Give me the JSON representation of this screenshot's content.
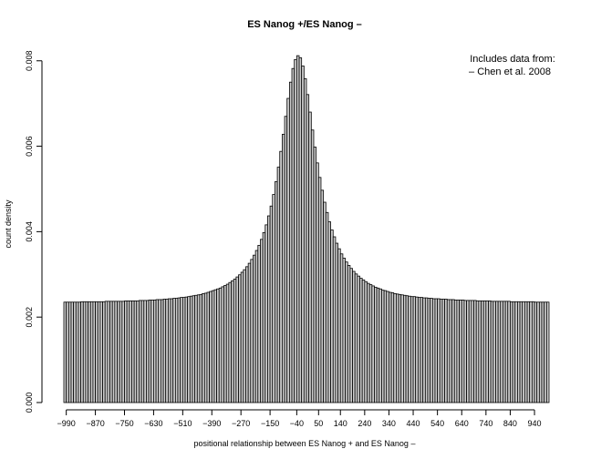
{
  "chart_data": {
    "type": "bar",
    "title": "ES Nanog +/ES Nanog –",
    "xlabel": "positional relationship between ES Nanog + and ES Nanog –",
    "ylabel": "count density",
    "annotation_lines": [
      "Includes data from:",
      "– Chen et al. 2008"
    ],
    "xlim": [
      -1000,
      1000
    ],
    "ylim": [
      0,
      0.0084
    ],
    "bin_width": 10,
    "x_tick_values": [
      -990,
      -870,
      -750,
      -630,
      -510,
      -390,
      -270,
      -150,
      -40,
      50,
      140,
      240,
      340,
      440,
      540,
      640,
      740,
      840,
      940
    ],
    "x_tick_labels": [
      "−990",
      "−870",
      "−750",
      "−630",
      "−510",
      "−390",
      "−270",
      "−150",
      "−40",
      "50",
      "140",
      "240",
      "340",
      "440",
      "540",
      "640",
      "740",
      "840",
      "940"
    ],
    "y_tick_values": [
      0,
      0.002,
      0.004,
      0.006,
      0.008
    ],
    "y_tick_labels": [
      "0.000",
      "0.002",
      "0.004",
      "0.006",
      "0.008"
    ],
    "bar_fill": "#cccccc",
    "bar_stroke": "#000000",
    "bins": [
      {
        "x": -1000,
        "y": 0.00235
      },
      {
        "x": -990,
        "y": 0.00235
      },
      {
        "x": -980,
        "y": 0.00235
      },
      {
        "x": -970,
        "y": 0.00235
      },
      {
        "x": -960,
        "y": 0.00235
      },
      {
        "x": -950,
        "y": 0.00235
      },
      {
        "x": -940,
        "y": 0.00235
      },
      {
        "x": -930,
        "y": 0.00236
      },
      {
        "x": -920,
        "y": 0.00236
      },
      {
        "x": -910,
        "y": 0.00236
      },
      {
        "x": -900,
        "y": 0.00236
      },
      {
        "x": -890,
        "y": 0.00236
      },
      {
        "x": -880,
        "y": 0.00236
      },
      {
        "x": -870,
        "y": 0.00236
      },
      {
        "x": -860,
        "y": 0.00236
      },
      {
        "x": -850,
        "y": 0.00236
      },
      {
        "x": -840,
        "y": 0.00236
      },
      {
        "x": -830,
        "y": 0.00237
      },
      {
        "x": -820,
        "y": 0.00237
      },
      {
        "x": -810,
        "y": 0.00237
      },
      {
        "x": -800,
        "y": 0.00237
      },
      {
        "x": -790,
        "y": 0.00237
      },
      {
        "x": -780,
        "y": 0.00237
      },
      {
        "x": -770,
        "y": 0.00237
      },
      {
        "x": -760,
        "y": 0.00237
      },
      {
        "x": -750,
        "y": 0.00238
      },
      {
        "x": -740,
        "y": 0.00238
      },
      {
        "x": -730,
        "y": 0.00238
      },
      {
        "x": -720,
        "y": 0.00238
      },
      {
        "x": -710,
        "y": 0.00238
      },
      {
        "x": -700,
        "y": 0.00238
      },
      {
        "x": -690,
        "y": 0.00239
      },
      {
        "x": -680,
        "y": 0.00239
      },
      {
        "x": -670,
        "y": 0.00239
      },
      {
        "x": -660,
        "y": 0.00239
      },
      {
        "x": -650,
        "y": 0.0024
      },
      {
        "x": -640,
        "y": 0.0024
      },
      {
        "x": -630,
        "y": 0.0024
      },
      {
        "x": -620,
        "y": 0.00241
      },
      {
        "x": -610,
        "y": 0.00241
      },
      {
        "x": -600,
        "y": 0.00241
      },
      {
        "x": -590,
        "y": 0.00242
      },
      {
        "x": -580,
        "y": 0.00242
      },
      {
        "x": -570,
        "y": 0.00243
      },
      {
        "x": -560,
        "y": 0.00243
      },
      {
        "x": -550,
        "y": 0.00244
      },
      {
        "x": -540,
        "y": 0.00244
      },
      {
        "x": -530,
        "y": 0.00245
      },
      {
        "x": -520,
        "y": 0.00246
      },
      {
        "x": -510,
        "y": 0.00246
      },
      {
        "x": -500,
        "y": 0.00247
      },
      {
        "x": -490,
        "y": 0.00248
      },
      {
        "x": -480,
        "y": 0.00249
      },
      {
        "x": -470,
        "y": 0.0025
      },
      {
        "x": -460,
        "y": 0.00251
      },
      {
        "x": -450,
        "y": 0.00252
      },
      {
        "x": -440,
        "y": 0.00253
      },
      {
        "x": -430,
        "y": 0.00255
      },
      {
        "x": -420,
        "y": 0.00256
      },
      {
        "x": -410,
        "y": 0.00258
      },
      {
        "x": -400,
        "y": 0.0026
      },
      {
        "x": -390,
        "y": 0.00262
      },
      {
        "x": -380,
        "y": 0.00264
      },
      {
        "x": -370,
        "y": 0.00266
      },
      {
        "x": -360,
        "y": 0.00268
      },
      {
        "x": -350,
        "y": 0.00271
      },
      {
        "x": -340,
        "y": 0.00274
      },
      {
        "x": -330,
        "y": 0.00277
      },
      {
        "x": -320,
        "y": 0.00281
      },
      {
        "x": -310,
        "y": 0.00285
      },
      {
        "x": -300,
        "y": 0.00289
      },
      {
        "x": -290,
        "y": 0.00294
      },
      {
        "x": -280,
        "y": 0.00299
      },
      {
        "x": -270,
        "y": 0.00305
      },
      {
        "x": -260,
        "y": 0.00311
      },
      {
        "x": -250,
        "y": 0.00318
      },
      {
        "x": -240,
        "y": 0.00326
      },
      {
        "x": -230,
        "y": 0.00335
      },
      {
        "x": -220,
        "y": 0.00345
      },
      {
        "x": -210,
        "y": 0.00356
      },
      {
        "x": -200,
        "y": 0.00368
      },
      {
        "x": -190,
        "y": 0.00382
      },
      {
        "x": -180,
        "y": 0.00398
      },
      {
        "x": -170,
        "y": 0.00416
      },
      {
        "x": -160,
        "y": 0.00437
      },
      {
        "x": -150,
        "y": 0.0046
      },
      {
        "x": -140,
        "y": 0.00487
      },
      {
        "x": -130,
        "y": 0.00517
      },
      {
        "x": -120,
        "y": 0.00551
      },
      {
        "x": -110,
        "y": 0.00588
      },
      {
        "x": -100,
        "y": 0.00628
      },
      {
        "x": -90,
        "y": 0.0067
      },
      {
        "x": -80,
        "y": 0.00712
      },
      {
        "x": -70,
        "y": 0.0075
      },
      {
        "x": -60,
        "y": 0.00782
      },
      {
        "x": -50,
        "y": 0.00803
      },
      {
        "x": -40,
        "y": 0.00812
      },
      {
        "x": -30,
        "y": 0.00807
      },
      {
        "x": -20,
        "y": 0.00788
      },
      {
        "x": -10,
        "y": 0.00758
      },
      {
        "x": 0,
        "y": 0.00721
      },
      {
        "x": 10,
        "y": 0.0068
      },
      {
        "x": 20,
        "y": 0.00638
      },
      {
        "x": 30,
        "y": 0.00598
      },
      {
        "x": 40,
        "y": 0.00561
      },
      {
        "x": 50,
        "y": 0.00527
      },
      {
        "x": 60,
        "y": 0.00497
      },
      {
        "x": 70,
        "y": 0.00469
      },
      {
        "x": 80,
        "y": 0.00445
      },
      {
        "x": 90,
        "y": 0.00423
      },
      {
        "x": 100,
        "y": 0.00404
      },
      {
        "x": 110,
        "y": 0.00388
      },
      {
        "x": 120,
        "y": 0.00373
      },
      {
        "x": 130,
        "y": 0.0036
      },
      {
        "x": 140,
        "y": 0.00348
      },
      {
        "x": 150,
        "y": 0.00338
      },
      {
        "x": 160,
        "y": 0.00329
      },
      {
        "x": 170,
        "y": 0.00321
      },
      {
        "x": 180,
        "y": 0.00314
      },
      {
        "x": 190,
        "y": 0.00307
      },
      {
        "x": 200,
        "y": 0.00301
      },
      {
        "x": 210,
        "y": 0.00296
      },
      {
        "x": 220,
        "y": 0.00291
      },
      {
        "x": 230,
        "y": 0.00287
      },
      {
        "x": 240,
        "y": 0.00283
      },
      {
        "x": 250,
        "y": 0.00279
      },
      {
        "x": 260,
        "y": 0.00276
      },
      {
        "x": 270,
        "y": 0.00273
      },
      {
        "x": 280,
        "y": 0.0027
      },
      {
        "x": 290,
        "y": 0.00268
      },
      {
        "x": 300,
        "y": 0.00266
      },
      {
        "x": 310,
        "y": 0.00263
      },
      {
        "x": 320,
        "y": 0.00262
      },
      {
        "x": 330,
        "y": 0.0026
      },
      {
        "x": 340,
        "y": 0.00258
      },
      {
        "x": 350,
        "y": 0.00257
      },
      {
        "x": 360,
        "y": 0.00255
      },
      {
        "x": 370,
        "y": 0.00254
      },
      {
        "x": 380,
        "y": 0.00253
      },
      {
        "x": 390,
        "y": 0.00252
      },
      {
        "x": 400,
        "y": 0.00251
      },
      {
        "x": 410,
        "y": 0.0025
      },
      {
        "x": 420,
        "y": 0.00249
      },
      {
        "x": 430,
        "y": 0.00248
      },
      {
        "x": 440,
        "y": 0.00248
      },
      {
        "x": 450,
        "y": 0.00247
      },
      {
        "x": 460,
        "y": 0.00246
      },
      {
        "x": 470,
        "y": 0.00246
      },
      {
        "x": 480,
        "y": 0.00245
      },
      {
        "x": 490,
        "y": 0.00245
      },
      {
        "x": 500,
        "y": 0.00244
      },
      {
        "x": 510,
        "y": 0.00244
      },
      {
        "x": 520,
        "y": 0.00243
      },
      {
        "x": 530,
        "y": 0.00243
      },
      {
        "x": 540,
        "y": 0.00243
      },
      {
        "x": 550,
        "y": 0.00242
      },
      {
        "x": 560,
        "y": 0.00242
      },
      {
        "x": 570,
        "y": 0.00242
      },
      {
        "x": 580,
        "y": 0.00241
      },
      {
        "x": 590,
        "y": 0.00241
      },
      {
        "x": 600,
        "y": 0.00241
      },
      {
        "x": 610,
        "y": 0.0024
      },
      {
        "x": 620,
        "y": 0.0024
      },
      {
        "x": 630,
        "y": 0.0024
      },
      {
        "x": 640,
        "y": 0.0024
      },
      {
        "x": 650,
        "y": 0.00239
      },
      {
        "x": 660,
        "y": 0.00239
      },
      {
        "x": 670,
        "y": 0.00239
      },
      {
        "x": 680,
        "y": 0.00239
      },
      {
        "x": 690,
        "y": 0.00239
      },
      {
        "x": 700,
        "y": 0.00238
      },
      {
        "x": 710,
        "y": 0.00238
      },
      {
        "x": 720,
        "y": 0.00238
      },
      {
        "x": 730,
        "y": 0.00238
      },
      {
        "x": 740,
        "y": 0.00238
      },
      {
        "x": 750,
        "y": 0.00238
      },
      {
        "x": 760,
        "y": 0.00237
      },
      {
        "x": 770,
        "y": 0.00237
      },
      {
        "x": 780,
        "y": 0.00237
      },
      {
        "x": 790,
        "y": 0.00237
      },
      {
        "x": 800,
        "y": 0.00237
      },
      {
        "x": 810,
        "y": 0.00237
      },
      {
        "x": 820,
        "y": 0.00237
      },
      {
        "x": 830,
        "y": 0.00237
      },
      {
        "x": 840,
        "y": 0.00236
      },
      {
        "x": 850,
        "y": 0.00236
      },
      {
        "x": 860,
        "y": 0.00236
      },
      {
        "x": 870,
        "y": 0.00236
      },
      {
        "x": 880,
        "y": 0.00236
      },
      {
        "x": 890,
        "y": 0.00236
      },
      {
        "x": 900,
        "y": 0.00236
      },
      {
        "x": 910,
        "y": 0.00236
      },
      {
        "x": 920,
        "y": 0.00236
      },
      {
        "x": 930,
        "y": 0.00236
      },
      {
        "x": 940,
        "y": 0.00235
      },
      {
        "x": 950,
        "y": 0.00235
      },
      {
        "x": 960,
        "y": 0.00235
      },
      {
        "x": 970,
        "y": 0.00235
      },
      {
        "x": 980,
        "y": 0.00235
      },
      {
        "x": 990,
        "y": 0.00235
      }
    ]
  }
}
